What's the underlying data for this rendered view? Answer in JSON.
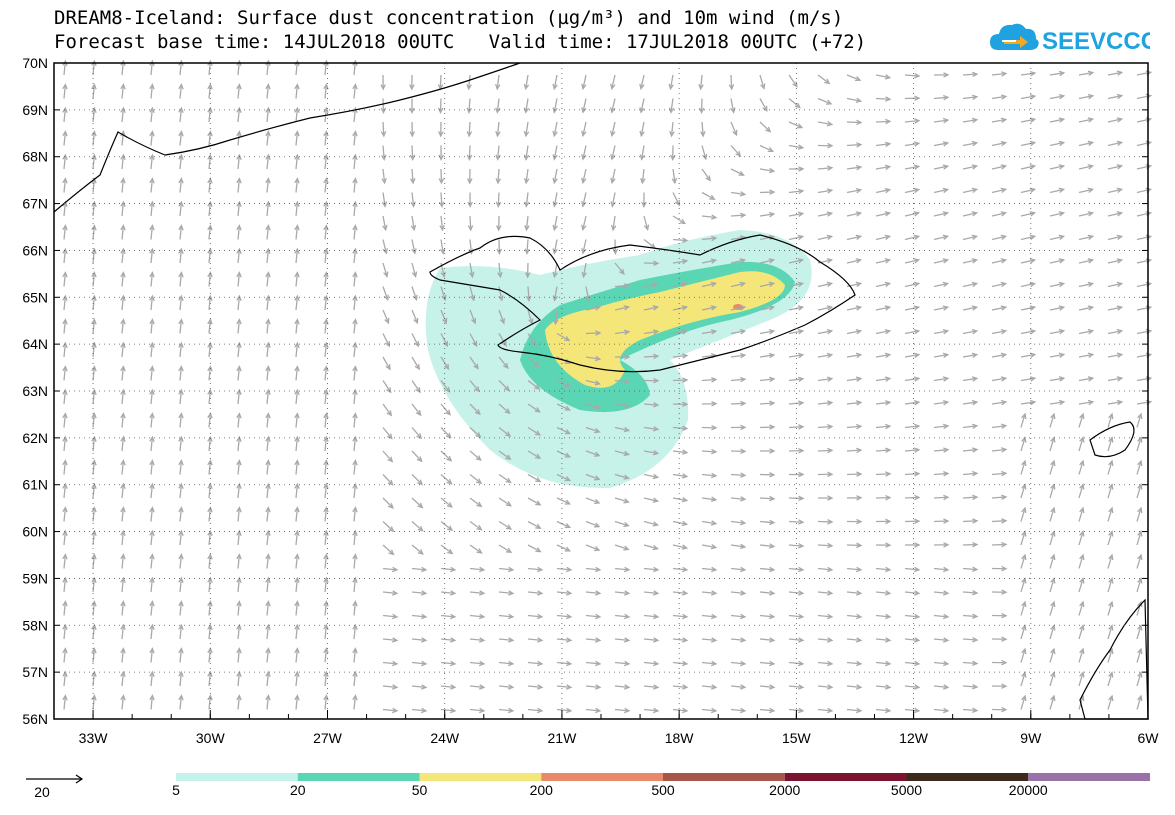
{
  "header": {
    "title_line1": "DREAM8-Iceland: Surface dust concentration (µg/m³) and 10m wind (m/s)",
    "title_line2": "Forecast base time: 14JUL2018 00UTC   Valid time: 17JUL2018 00UTC (+72)"
  },
  "logo": {
    "text": "SEEVCCC",
    "color": "#1ea3e0",
    "accent": "#f5a623"
  },
  "map": {
    "lat_labels": [
      "70N",
      "69N",
      "68N",
      "67N",
      "66N",
      "65N",
      "64N",
      "63N",
      "62N",
      "61N",
      "60N",
      "59N",
      "58N",
      "57N",
      "56N"
    ],
    "lon_labels": [
      "33W",
      "30W",
      "27W",
      "24W",
      "21W",
      "18W",
      "15W",
      "12W",
      "9W",
      "6W"
    ],
    "lat_range": [
      56,
      70
    ],
    "lon_range": [
      -34,
      -6
    ],
    "grid": "dotted",
    "wind_vector_color": "#a9a9a9",
    "coast_color": "#000000"
  },
  "legend": {
    "reference_vector_label": "20",
    "scale_labels": [
      "5",
      "20",
      "50",
      "200",
      "500",
      "2000",
      "5000",
      "20000"
    ],
    "colors": [
      "#c6f2ea",
      "#5ad6b4",
      "#f5e67a",
      "#e8896a",
      "#a8554a",
      "#7a1430",
      "#3e2a1c",
      "#9b72a8"
    ]
  }
}
